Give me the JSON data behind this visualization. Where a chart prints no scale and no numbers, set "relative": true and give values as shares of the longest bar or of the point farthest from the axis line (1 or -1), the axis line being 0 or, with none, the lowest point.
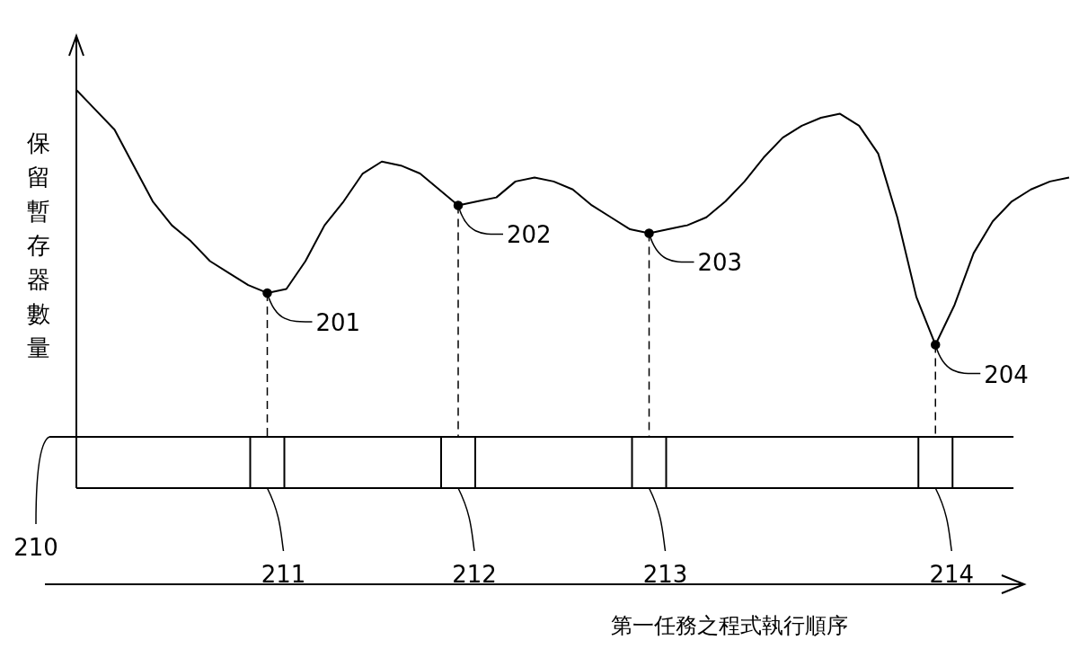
{
  "chart_data": {
    "type": "line",
    "relative": true,
    "ylabel": "保留暫存器數量",
    "categories": [
      null,
      null,
      null,
      null,
      null,
      null,
      null,
      null,
      null,
      null,
      null,
      null,
      null,
      null,
      null,
      null,
      null,
      null,
      null,
      null,
      null,
      null,
      null,
      null,
      null,
      null,
      null,
      null,
      null,
      null,
      null,
      null,
      null,
      null,
      null,
      null,
      null,
      null,
      null,
      null,
      null,
      null,
      null,
      null,
      null,
      null,
      null,
      null,
      null,
      null,
      null,
      null,
      null
    ],
    "series": [
      {
        "color": "#000000",
        "values": [
          1,
          0.95,
          0.9,
          0.81,
          0.72,
          0.66,
          0.62,
          0.57,
          0.54,
          0.51,
          0.49,
          0.5,
          0.57,
          0.66,
          0.72,
          0.79,
          0.82,
          0.81,
          0.79,
          0.75,
          0.71,
          0.72,
          0.73,
          0.77,
          0.78,
          0.77,
          0.75,
          0.71,
          0.68,
          0.65,
          0.64,
          0.65,
          0.66,
          0.68,
          0.72,
          0.77,
          0.83,
          0.88,
          0.91,
          0.93,
          0.94,
          0.91,
          0.84,
          0.68,
          0.48,
          0.36,
          0.46,
          0.59,
          0.67,
          0.72,
          0.75,
          0.77,
          0.78
        ]
      }
    ],
    "annotations": [
      "201",
      "202",
      "203",
      "204",
      "210",
      "211",
      "212",
      "213",
      "214",
      "第一任務之程式執行順序"
    ]
  }
}
